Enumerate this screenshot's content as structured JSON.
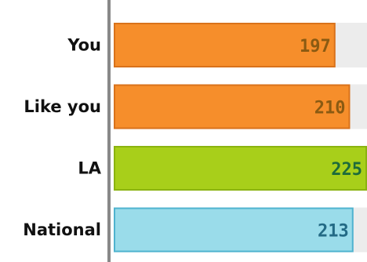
{
  "chart_data": {
    "type": "bar",
    "orientation": "horizontal",
    "categories": [
      "You",
      "Like you",
      "LA",
      "National"
    ],
    "values": [
      197,
      210,
      225,
      213
    ],
    "xlim": [
      0,
      225
    ],
    "title": "",
    "xlabel": "",
    "ylabel": "",
    "grid": false,
    "bar_colors": [
      "#f68e2b",
      "#f68e2b",
      "#a8cf1a",
      "#9adcea"
    ],
    "bar_edge_colors": [
      "#d9721b",
      "#d9721b",
      "#8bb310",
      "#4fb3cf"
    ],
    "value_label_colors": [
      "#8a5a12",
      "#8a5a12",
      "#1d6b3a",
      "#236a85"
    ],
    "track_color": "#ececec",
    "axis_color": "#888888"
  }
}
